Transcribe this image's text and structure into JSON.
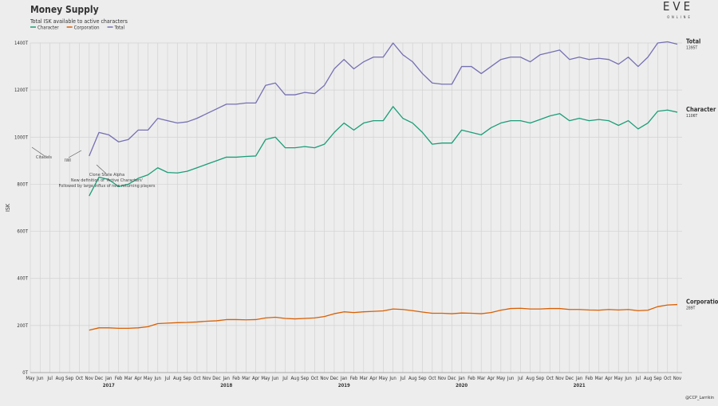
{
  "chart_data": {
    "type": "line",
    "title": "Money Supply",
    "subtitle": "Total ISK available to active characters",
    "y_label": "ISK",
    "categories": [
      "May",
      "Jun",
      "Jul",
      "Aug",
      "Sep",
      "Oct",
      "Nov",
      "Dec",
      "Jan",
      "Feb",
      "Mar",
      "Apr",
      "May",
      "Jun",
      "Jul",
      "Aug",
      "Sep",
      "Oct",
      "Nov",
      "Dec",
      "Jan",
      "Feb",
      "Mar",
      "Apr",
      "May",
      "Jun",
      "Jul",
      "Aug",
      "Sep",
      "Oct",
      "Nov",
      "Dec",
      "Jan",
      "Feb",
      "Mar",
      "Apr",
      "May",
      "Jun",
      "Jul",
      "Aug",
      "Sep",
      "Oct",
      "Nov",
      "Dec",
      "Jan",
      "Feb",
      "Mar",
      "Apr",
      "May",
      "Jun",
      "Jul",
      "Aug",
      "Sep",
      "Oct",
      "Nov",
      "Dec",
      "Jan",
      "Feb",
      "Mar",
      "Apr",
      "May",
      "Jun",
      "Jul",
      "Aug",
      "Sep",
      "Oct",
      "Nov"
    ],
    "years": [
      "2017",
      "2018",
      "2019",
      "2020",
      "2021"
    ],
    "series": [
      {
        "name": "Character",
        "color": "#1b9e77",
        "last_label": "1106T",
        "values": [
          null,
          null,
          null,
          null,
          null,
          null,
          750,
          830,
          820,
          790,
          800,
          825,
          840,
          870,
          850,
          848,
          855,
          870,
          885,
          900,
          915,
          915,
          918,
          920,
          990,
          1000,
          955,
          955,
          960,
          955,
          970,
          1020,
          1060,
          1030,
          1060,
          1070,
          1070,
          1130,
          1080,
          1060,
          1020,
          970,
          975,
          975,
          1030,
          1020,
          1010,
          1040,
          1060,
          1070,
          1070,
          1060,
          1075,
          1090,
          1100,
          1070,
          1080,
          1070,
          1075,
          1070,
          1050,
          1070,
          1035,
          1060,
          1110,
          1115,
          1106
        ]
      },
      {
        "name": "Corporation",
        "color": "#d95f02",
        "last_label": "289T",
        "values": [
          null,
          null,
          null,
          null,
          null,
          null,
          180,
          190,
          190,
          188,
          188,
          190,
          195,
          208,
          210,
          212,
          213,
          215,
          218,
          220,
          225,
          225,
          224,
          225,
          232,
          235,
          230,
          228,
          230,
          232,
          238,
          250,
          258,
          255,
          258,
          260,
          262,
          270,
          268,
          263,
          257,
          252,
          252,
          250,
          253,
          252,
          250,
          255,
          265,
          272,
          273,
          270,
          270,
          272,
          272,
          268,
          268,
          266,
          265,
          268,
          266,
          268,
          263,
          265,
          280,
          287,
          289
        ]
      },
      {
        "name": "Total",
        "color": "#7570b3",
        "last_label": "1395T",
        "values": [
          null,
          null,
          null,
          null,
          null,
          null,
          920,
          1020,
          1010,
          980,
          990,
          1030,
          1030,
          1080,
          1070,
          1060,
          1065,
          1080,
          1100,
          1120,
          1140,
          1140,
          1145,
          1145,
          1220,
          1230,
          1180,
          1180,
          1190,
          1185,
          1220,
          1290,
          1330,
          1290,
          1320,
          1340,
          1340,
          1400,
          1350,
          1320,
          1270,
          1230,
          1225,
          1225,
          1300,
          1300,
          1270,
          1300,
          1330,
          1340,
          1340,
          1320,
          1350,
          1360,
          1370,
          1330,
          1340,
          1330,
          1335,
          1330,
          1310,
          1340,
          1300,
          1340,
          1400,
          1405,
          1395
        ]
      }
    ],
    "ylim": [
      0,
      1400
    ],
    "yticks": [
      {
        "value": 0,
        "label": "0T"
      },
      {
        "value": 200,
        "label": "200T"
      },
      {
        "value": 400,
        "label": "400T"
      },
      {
        "value": 600,
        "label": "600T"
      },
      {
        "value": 800,
        "label": "800T"
      },
      {
        "value": 1000,
        "label": "1000T"
      },
      {
        "value": 1200,
        "label": "1200T"
      },
      {
        "value": 1400,
        "label": "1400T"
      }
    ],
    "grid": true,
    "annotations": [
      "Citadels",
      "IWI",
      "Clone State Alpha",
      "New definition of 'Active Characters'",
      "Followed by large influx of new returning players"
    ],
    "logo": [
      "EVE",
      "ONLINE"
    ],
    "credit": "@CCP_Larrikin"
  }
}
